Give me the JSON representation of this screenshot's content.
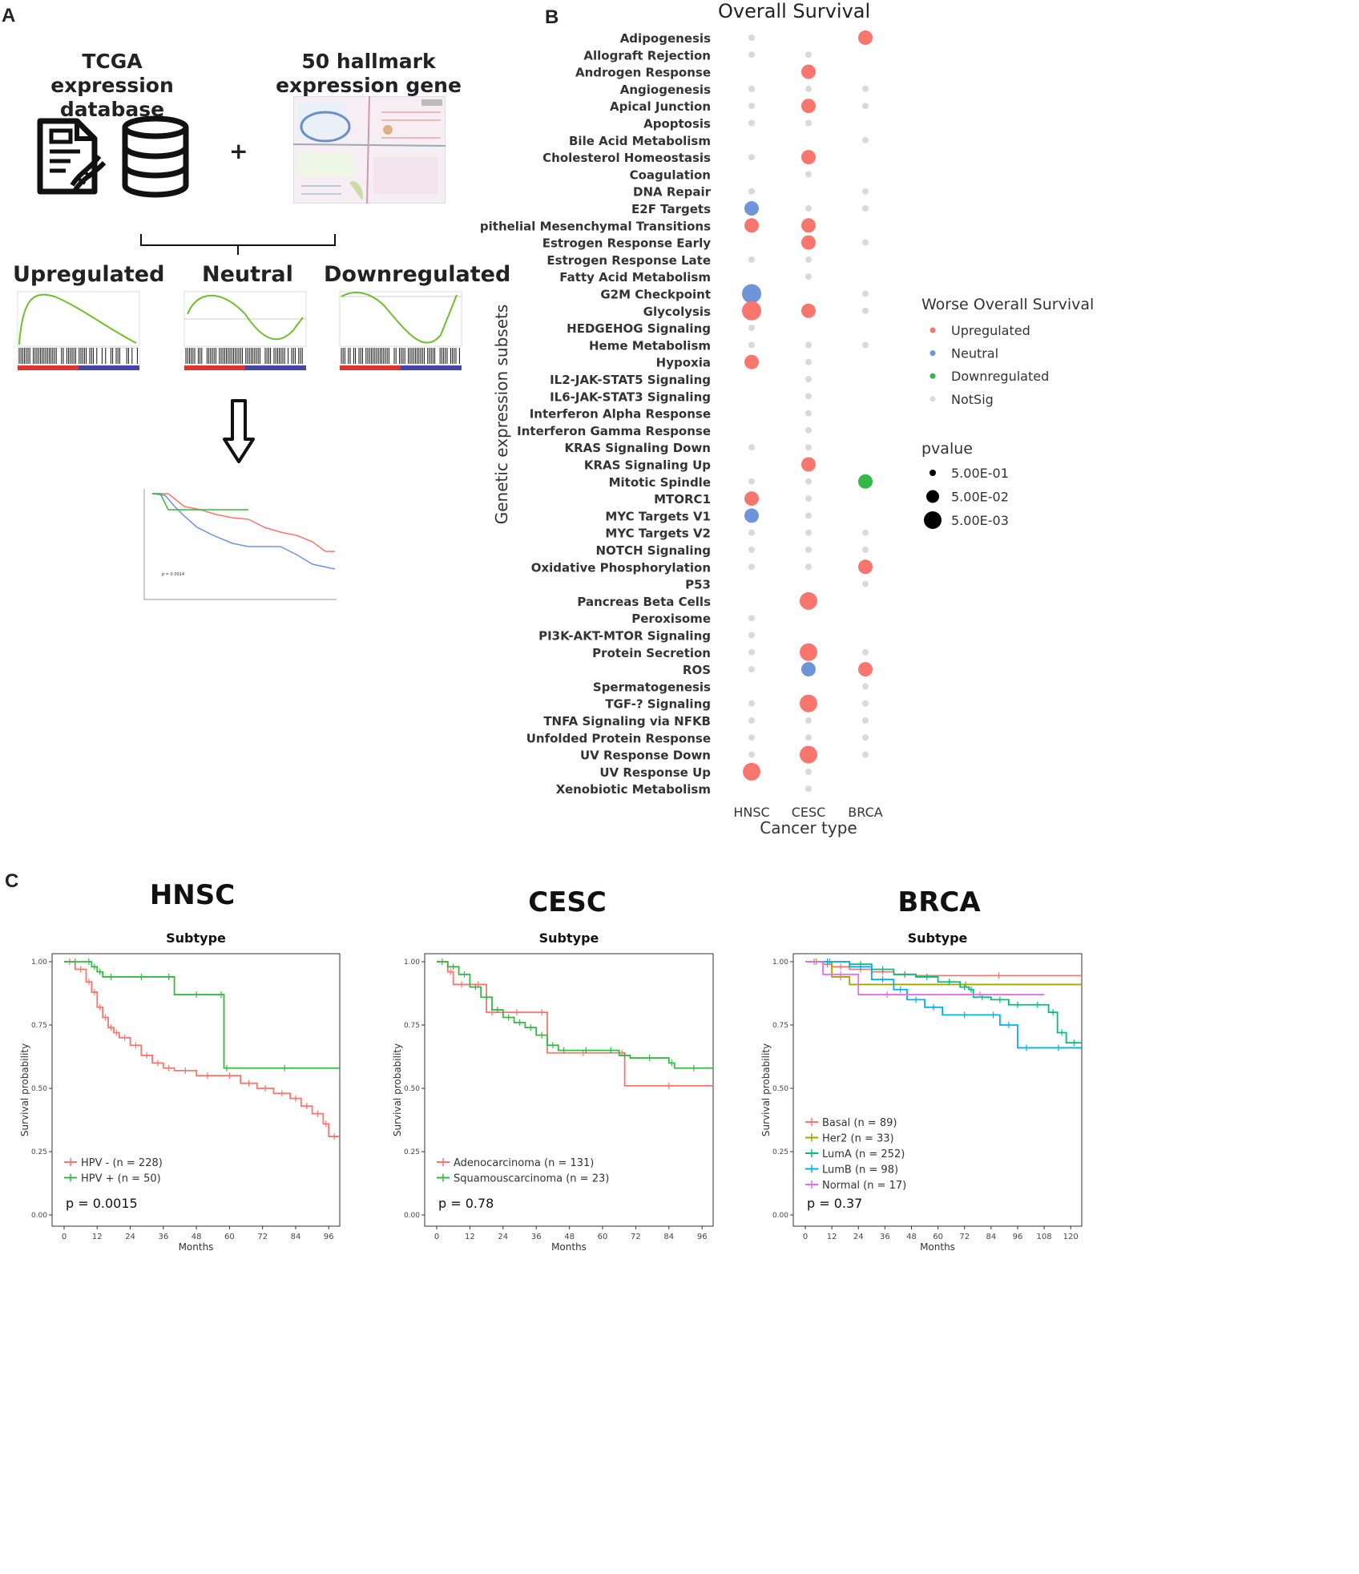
{
  "panels": {
    "a": "A",
    "b": "B",
    "c": "C"
  },
  "schematic": {
    "db_title_line1": "TCGA",
    "db_title_line2": "expression database",
    "hallmark_title_line1": "50 hallmark",
    "hallmark_title_line2": "expression gene sets",
    "plus": "+",
    "categories": {
      "up": "Upregulated",
      "neutral": "Neutral",
      "down": "Downregulated"
    },
    "mini_km_pvalue": "p = 0.0014"
  },
  "colors": {
    "up": "#f8766d",
    "neutral": "#6f95d8",
    "down": "#35b845",
    "notsig": "#d9d9d9",
    "cat_up": "#ee1c24",
    "cat_neutral": "#2da8e0",
    "cat_down": "#2ca243"
  },
  "dotplot": {
    "title": "Overall Survival",
    "ylabel": "Genetic expression subsets",
    "xlabel": "Cancer type",
    "cancer_types": [
      "HNSC",
      "CESC",
      "BRCA"
    ],
    "gene_sets": [
      "Adipogenesis",
      "Allograft Rejection",
      "Androgen Response",
      "Angiogenesis",
      "Apical Junction",
      "Apoptosis",
      "Bile Acid Metabolism",
      "Cholesterol Homeostasis",
      "Coagulation",
      "DNA Repair",
      "E2F Targets",
      "Epithelial Mesenchymal Transitions",
      "Estrogen Response Early",
      "Estrogen Response Late",
      "Fatty Acid Metabolism",
      "G2M Checkpoint",
      "Glycolysis",
      "HEDGEHOG Signaling",
      "Heme Metabolism",
      "Hypoxia",
      "IL2-JAK-STAT5 Signaling",
      "IL6-JAK-STAT3 Signaling",
      "Interferon Alpha Response",
      "Interferon Gamma Response",
      "KRAS Signaling Down",
      "KRAS Signaling Up",
      "Mitotic Spindle",
      "MTORC1",
      "MYC Targets V1",
      "MYC Targets V2",
      "NOTCH Signaling",
      "Oxidative Phosphorylation",
      "P53",
      "Pancreas Beta Cells",
      "Peroxisome",
      "PI3K-AKT-MTOR Signaling",
      "Protein Secretion",
      "ROS",
      "Spermatogenesis",
      "TGF-? Signaling",
      "TNFA Signaling via NFKB",
      "Unfolded Protein Response",
      "UV Response Down",
      "UV Response Up",
      "Xenobiotic Metabolism"
    ],
    "cells": [
      [
        "notsig",
        "",
        "up"
      ],
      [
        "notsig",
        "notsig",
        ""
      ],
      [
        "",
        "up",
        ""
      ],
      [
        "notsig",
        "notsig",
        "notsig"
      ],
      [
        "notsig",
        "up",
        "notsig"
      ],
      [
        "notsig",
        "notsig",
        ""
      ],
      [
        "",
        "",
        "notsig"
      ],
      [
        "notsig",
        "up",
        ""
      ],
      [
        "",
        "notsig",
        ""
      ],
      [
        "notsig",
        "",
        "notsig"
      ],
      [
        "neutral",
        "notsig",
        "notsig"
      ],
      [
        "up",
        "up",
        ""
      ],
      [
        "",
        "up",
        "notsig"
      ],
      [
        "notsig",
        "notsig",
        ""
      ],
      [
        "",
        "notsig",
        ""
      ],
      [
        "neutral",
        "",
        "notsig"
      ],
      [
        "up",
        "up",
        "notsig"
      ],
      [
        "notsig",
        "",
        ""
      ],
      [
        "notsig",
        "notsig",
        "notsig"
      ],
      [
        "up",
        "notsig",
        ""
      ],
      [
        "",
        "notsig",
        ""
      ],
      [
        "",
        "notsig",
        ""
      ],
      [
        "",
        "notsig",
        ""
      ],
      [
        "",
        "notsig",
        ""
      ],
      [
        "notsig",
        "notsig",
        ""
      ],
      [
        "",
        "up",
        ""
      ],
      [
        "notsig",
        "notsig",
        "down"
      ],
      [
        "up",
        "notsig",
        ""
      ],
      [
        "neutral",
        "notsig",
        ""
      ],
      [
        "notsig",
        "notsig",
        "notsig"
      ],
      [
        "notsig",
        "notsig",
        "notsig"
      ],
      [
        "notsig",
        "notsig",
        "up"
      ],
      [
        "",
        "",
        "notsig"
      ],
      [
        "",
        "up",
        ""
      ],
      [
        "notsig",
        "",
        ""
      ],
      [
        "notsig",
        "",
        ""
      ],
      [
        "notsig",
        "up",
        "notsig"
      ],
      [
        "notsig",
        "neutral",
        "up"
      ],
      [
        "",
        "",
        "notsig"
      ],
      [
        "notsig",
        "up",
        "notsig"
      ],
      [
        "notsig",
        "notsig",
        "notsig"
      ],
      [
        "notsig",
        "notsig",
        "notsig"
      ],
      [
        "notsig",
        "up",
        "notsig"
      ],
      [
        "up",
        "notsig",
        ""
      ],
      [
        "",
        "notsig",
        ""
      ]
    ],
    "pvals": [
      [
        0.5,
        0,
        0.02
      ],
      [
        0.5,
        0.5,
        0
      ],
      [
        0,
        0.03,
        0
      ],
      [
        0.5,
        0.5,
        0.5
      ],
      [
        0.5,
        0.03,
        0.5
      ],
      [
        0.5,
        0.5,
        0
      ],
      [
        0,
        0,
        0.5
      ],
      [
        0.5,
        0.03,
        0
      ],
      [
        0,
        0.5,
        0
      ],
      [
        0.5,
        0,
        0.5
      ],
      [
        0.02,
        0.5,
        0.5
      ],
      [
        0.03,
        0.03,
        0
      ],
      [
        0,
        0.03,
        0.5
      ],
      [
        0.5,
        0.5,
        0
      ],
      [
        0,
        0.5,
        0
      ],
      [
        0.004,
        0,
        0.5
      ],
      [
        0.005,
        0.03,
        0.5
      ],
      [
        0.5,
        0,
        0
      ],
      [
        0.5,
        0.5,
        0.5
      ],
      [
        0.03,
        0.5,
        0
      ],
      [
        0,
        0.5,
        0
      ],
      [
        0,
        0.5,
        0
      ],
      [
        0,
        0.5,
        0
      ],
      [
        0,
        0.5,
        0
      ],
      [
        0.5,
        0.5,
        0
      ],
      [
        0,
        0.03,
        0
      ],
      [
        0.5,
        0.5,
        0.03
      ],
      [
        0.03,
        0.5,
        0
      ],
      [
        0.03,
        0.5,
        0
      ],
      [
        0.5,
        0.5,
        0.5
      ],
      [
        0.5,
        0.5,
        0.5
      ],
      [
        0.5,
        0.5,
        0.03
      ],
      [
        0,
        0,
        0.5
      ],
      [
        0,
        0.008,
        0
      ],
      [
        0.5,
        0,
        0
      ],
      [
        0.5,
        0,
        0
      ],
      [
        0.5,
        0.006,
        0.5
      ],
      [
        0.5,
        0.03,
        0.03
      ],
      [
        0,
        0,
        0.5
      ],
      [
        0.5,
        0.008,
        0.5
      ],
      [
        0.5,
        0.5,
        0.5
      ],
      [
        0.5,
        0.5,
        0.5
      ],
      [
        0.5,
        0.008,
        0.5
      ],
      [
        0.008,
        0.5,
        0
      ],
      [
        0,
        0.5,
        0
      ]
    ],
    "legend_color_title": "Worse Overall Survival",
    "legend_colors": [
      {
        "key": "up",
        "label": "Upregulated"
      },
      {
        "key": "neutral",
        "label": "Neutral"
      },
      {
        "key": "down",
        "label": "Downregulated"
      },
      {
        "key": "notsig",
        "label": "NotSig"
      }
    ],
    "legend_size_title": "pvalue",
    "legend_sizes": [
      {
        "p": 0.5,
        "label": "5.00E-01"
      },
      {
        "p": 0.05,
        "label": "5.00E-02"
      },
      {
        "p": 0.005,
        "label": "5.00E-03"
      }
    ]
  },
  "chart_data": [
    {
      "type": "line",
      "title": "HNSC",
      "subtitle": "Subtype",
      "xlabel": "Months",
      "ylabel": "Survival probability",
      "xlim": [
        0,
        100
      ],
      "ylim": [
        0,
        1
      ],
      "xticks": [
        0,
        12,
        24,
        36,
        48,
        60,
        72,
        84,
        96
      ],
      "yticks": [
        0.0,
        0.25,
        0.5,
        0.75,
        1.0
      ],
      "ytick_labels": [
        "0.00",
        "0.25",
        "0.50",
        "0.75",
        "1.00"
      ],
      "pvalue": "p = 0.0015",
      "series": [
        {
          "name": "HPV - (n = 228)",
          "color": "#f8766d",
          "x": [
            0,
            4,
            8,
            10,
            12,
            14,
            16,
            18,
            20,
            24,
            28,
            32,
            36,
            40,
            48,
            56,
            64,
            70,
            76,
            82,
            86,
            90,
            94,
            96,
            100
          ],
          "y": [
            1.0,
            0.97,
            0.92,
            0.88,
            0.82,
            0.78,
            0.74,
            0.72,
            0.7,
            0.67,
            0.63,
            0.6,
            0.58,
            0.57,
            0.55,
            0.55,
            0.52,
            0.5,
            0.48,
            0.46,
            0.43,
            0.4,
            0.36,
            0.31,
            0.31
          ]
        },
        {
          "name": "HPV + (n = 50)",
          "color": "#35b845",
          "x": [
            0,
            8,
            10,
            12,
            14,
            20,
            36,
            40,
            56,
            58,
            60,
            100
          ],
          "y": [
            1.0,
            1.0,
            0.98,
            0.96,
            0.94,
            0.94,
            0.94,
            0.87,
            0.87,
            0.58,
            0.58,
            0.58
          ]
        }
      ]
    },
    {
      "type": "line",
      "title": "CESC",
      "subtitle": "Subtype",
      "xlabel": "Months",
      "ylabel": "Survival probability",
      "xlim": [
        0,
        100
      ],
      "ylim": [
        0,
        1
      ],
      "xticks": [
        0,
        12,
        24,
        36,
        48,
        60,
        72,
        84,
        96
      ],
      "yticks": [
        0.0,
        0.25,
        0.5,
        0.75,
        1.0
      ],
      "ytick_labels": [
        "0.00",
        "0.25",
        "0.50",
        "0.75",
        "1.00"
      ],
      "pvalue": "p = 0.78",
      "series": [
        {
          "name": "Adenocarcinoma (n = 131)",
          "color": "#f8766d",
          "x": [
            0,
            4,
            6,
            12,
            18,
            22,
            36,
            40,
            66,
            68,
            100
          ],
          "y": [
            1.0,
            0.96,
            0.91,
            0.91,
            0.8,
            0.8,
            0.8,
            0.64,
            0.64,
            0.51,
            0.51
          ]
        },
        {
          "name": "Squamouscarcinoma (n = 23)",
          "color": "#35b845",
          "x": [
            0,
            4,
            8,
            12,
            16,
            20,
            24,
            28,
            32,
            36,
            40,
            44,
            48,
            60,
            66,
            70,
            84,
            86,
            100
          ],
          "y": [
            1.0,
            0.98,
            0.95,
            0.9,
            0.86,
            0.81,
            0.78,
            0.76,
            0.74,
            0.71,
            0.67,
            0.65,
            0.65,
            0.65,
            0.63,
            0.62,
            0.6,
            0.58,
            0.58
          ]
        }
      ]
    },
    {
      "type": "line",
      "title": "BRCA",
      "subtitle": "Subtype",
      "xlabel": "Months",
      "ylabel": "Survival probability",
      "xlim": [
        0,
        125
      ],
      "ylim": [
        0,
        1
      ],
      "xticks": [
        0,
        12,
        24,
        36,
        48,
        60,
        72,
        84,
        96,
        108,
        120
      ],
      "yticks": [
        0.0,
        0.25,
        0.5,
        0.75,
        1.0
      ],
      "ytick_labels": [
        "0.00",
        "0.25",
        "0.50",
        "0.75",
        "1.00"
      ],
      "pvalue": "p = 0.37",
      "series": [
        {
          "name": "Basal (n = 89)",
          "color": "#f8766d",
          "x": [
            0,
            8,
            12,
            20,
            30,
            40,
            50,
            125
          ],
          "y": [
            1.0,
            0.99,
            0.98,
            0.97,
            0.96,
            0.95,
            0.945,
            0.945
          ]
        },
        {
          "name": "Her2 (n = 33)",
          "color": "#a3a500",
          "x": [
            0,
            10,
            12,
            20,
            125
          ],
          "y": [
            1.0,
            1.0,
            0.94,
            0.91,
            0.91
          ]
        },
        {
          "name": "LumA (n = 252)",
          "color": "#00bf7d",
          "x": [
            0,
            20,
            30,
            40,
            50,
            60,
            70,
            74,
            76,
            84,
            92,
            100,
            110,
            114,
            118,
            125
          ],
          "y": [
            1.0,
            0.99,
            0.97,
            0.95,
            0.94,
            0.92,
            0.9,
            0.89,
            0.86,
            0.85,
            0.83,
            0.83,
            0.8,
            0.72,
            0.68,
            0.68
          ]
        },
        {
          "name": "LumB (n = 98)",
          "color": "#00b0f6",
          "x": [
            0,
            20,
            30,
            40,
            46,
            54,
            62,
            82,
            88,
            96,
            104,
            125
          ],
          "y": [
            1.0,
            0.98,
            0.93,
            0.89,
            0.85,
            0.82,
            0.79,
            0.79,
            0.75,
            0.66,
            0.66,
            0.66
          ]
        },
        {
          "name": "Normal (n = 17)",
          "color": "#e76bf3",
          "x": [
            0,
            8,
            24,
            50,
            108
          ],
          "y": [
            1.0,
            0.95,
            0.87,
            0.87,
            0.87
          ]
        }
      ]
    }
  ]
}
